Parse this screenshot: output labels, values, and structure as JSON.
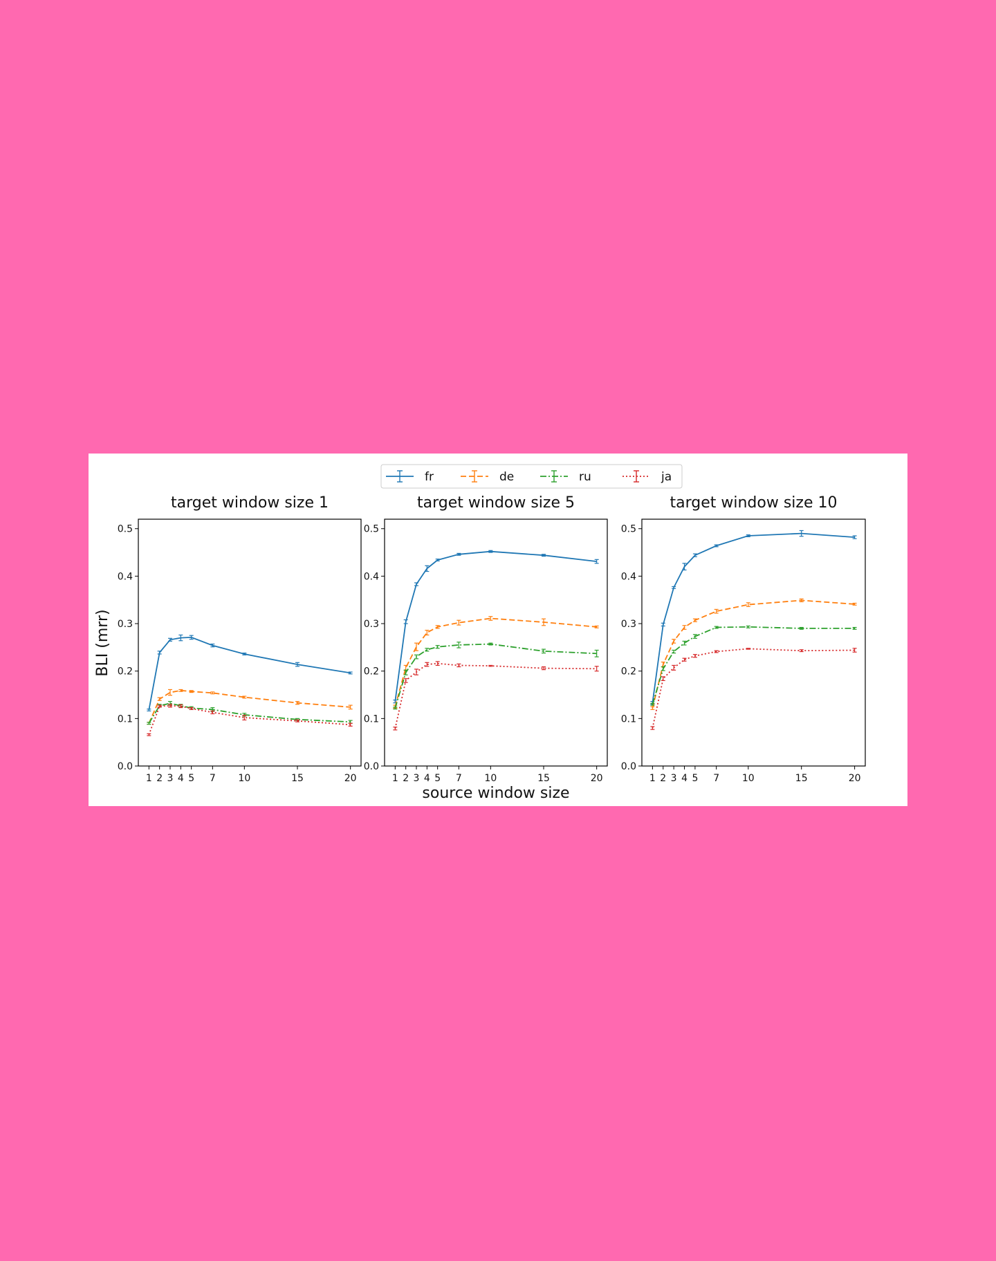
{
  "figure": {
    "ylabel": "BLI (mrr)",
    "xlabel": "source window size",
    "legend_position": "top-center"
  },
  "chart_data": [
    {
      "type": "line",
      "title": "target window size 1",
      "x": [
        1,
        2,
        3,
        4,
        5,
        7,
        10,
        15,
        20
      ],
      "x_ticks": [
        1,
        2,
        3,
        4,
        5,
        7,
        10,
        15,
        20
      ],
      "xlim": [
        0,
        21
      ],
      "ylim": [
        0,
        0.52
      ],
      "y_ticks": [
        "0.0",
        "0.1",
        "0.2",
        "0.3",
        "0.4",
        "0.5"
      ],
      "series": [
        {
          "name": "fr",
          "color": "#1f77b4",
          "dash": "solid",
          "values": [
            0.118,
            0.239,
            0.266,
            0.27,
            0.271,
            0.254,
            0.236,
            0.214,
            0.196
          ],
          "err": [
            0.002,
            0.003,
            0.003,
            0.006,
            0.004,
            0.003,
            0.002,
            0.004,
            0.002
          ]
        },
        {
          "name": "de",
          "color": "#ff7f0e",
          "dash": "dashed",
          "values": [
            0.09,
            0.141,
            0.155,
            0.159,
            0.157,
            0.154,
            0.145,
            0.133,
            0.124
          ],
          "err": [
            0.002,
            0.003,
            0.006,
            0.002,
            0.002,
            0.002,
            0.002,
            0.003,
            0.004
          ]
        },
        {
          "name": "ru",
          "color": "#2ca02c",
          "dash": "dashdot",
          "values": [
            0.09,
            0.127,
            0.132,
            0.127,
            0.122,
            0.119,
            0.108,
            0.098,
            0.093
          ],
          "err": [
            0.002,
            0.003,
            0.004,
            0.003,
            0.003,
            0.004,
            0.003,
            0.002,
            0.003
          ]
        },
        {
          "name": "ja",
          "color": "#d62728",
          "dash": "dotted",
          "values": [
            0.066,
            0.126,
            0.127,
            0.126,
            0.121,
            0.113,
            0.102,
            0.095,
            0.087
          ],
          "err": [
            0.002,
            0.002,
            0.003,
            0.003,
            0.002,
            0.003,
            0.005,
            0.002,
            0.003
          ]
        }
      ]
    },
    {
      "type": "line",
      "title": "target window size 5",
      "x": [
        1,
        2,
        3,
        4,
        5,
        7,
        10,
        15,
        20
      ],
      "x_ticks": [
        1,
        2,
        3,
        4,
        5,
        7,
        10,
        15,
        20
      ],
      "xlim": [
        0,
        21
      ],
      "ylim": [
        0,
        0.52
      ],
      "y_ticks": [
        "0.0",
        "0.1",
        "0.2",
        "0.3",
        "0.4",
        "0.5"
      ],
      "series": [
        {
          "name": "fr",
          "color": "#1f77b4",
          "dash": "solid",
          "values": [
            0.136,
            0.304,
            0.383,
            0.416,
            0.434,
            0.446,
            0.452,
            0.444,
            0.431
          ],
          "err": [
            0.003,
            0.004,
            0.003,
            0.006,
            0.002,
            0.002,
            0.002,
            0.002,
            0.004
          ]
        },
        {
          "name": "de",
          "color": "#ff7f0e",
          "dash": "dashed",
          "values": [
            0.125,
            0.207,
            0.251,
            0.281,
            0.293,
            0.302,
            0.311,
            0.303,
            0.293
          ],
          "err": [
            0.003,
            0.005,
            0.008,
            0.005,
            0.003,
            0.005,
            0.004,
            0.007,
            0.002
          ]
        },
        {
          "name": "ru",
          "color": "#2ca02c",
          "dash": "dashdot",
          "values": [
            0.122,
            0.197,
            0.23,
            0.245,
            0.251,
            0.255,
            0.257,
            0.242,
            0.237
          ],
          "err": [
            0.002,
            0.005,
            0.004,
            0.003,
            0.003,
            0.006,
            0.002,
            0.004,
            0.007
          ]
        },
        {
          "name": "ja",
          "color": "#d62728",
          "dash": "dotted",
          "values": [
            0.079,
            0.18,
            0.198,
            0.214,
            0.216,
            0.212,
            0.211,
            0.206,
            0.205
          ],
          "err": [
            0.003,
            0.004,
            0.006,
            0.004,
            0.004,
            0.003,
            0.001,
            0.003,
            0.005
          ]
        }
      ]
    },
    {
      "type": "line",
      "title": "target window size 10",
      "x": [
        1,
        2,
        3,
        4,
        5,
        7,
        10,
        15,
        20
      ],
      "x_ticks": [
        1,
        2,
        3,
        4,
        5,
        7,
        10,
        15,
        20
      ],
      "xlim": [
        0,
        21
      ],
      "ylim": [
        0,
        0.52
      ],
      "y_ticks": [
        "0.0",
        "0.1",
        "0.2",
        "0.3",
        "0.4",
        "0.5"
      ],
      "series": [
        {
          "name": "fr",
          "color": "#1f77b4",
          "dash": "solid",
          "values": [
            0.133,
            0.298,
            0.376,
            0.42,
            0.444,
            0.464,
            0.485,
            0.49,
            0.482
          ],
          "err": [
            0.003,
            0.003,
            0.002,
            0.007,
            0.003,
            0.002,
            0.002,
            0.006,
            0.003
          ]
        },
        {
          "name": "de",
          "color": "#ff7f0e",
          "dash": "dashed",
          "values": [
            0.122,
            0.214,
            0.263,
            0.292,
            0.307,
            0.326,
            0.34,
            0.349,
            0.341
          ],
          "err": [
            0.003,
            0.005,
            0.004,
            0.004,
            0.003,
            0.004,
            0.004,
            0.003,
            0.002
          ]
        },
        {
          "name": "ru",
          "color": "#2ca02c",
          "dash": "dashdot",
          "values": [
            0.13,
            0.205,
            0.241,
            0.259,
            0.273,
            0.292,
            0.293,
            0.29,
            0.29
          ],
          "err": [
            0.002,
            0.004,
            0.003,
            0.004,
            0.004,
            0.002,
            0.002,
            0.002,
            0.002
          ]
        },
        {
          "name": "ja",
          "color": "#d62728",
          "dash": "dotted",
          "values": [
            0.08,
            0.184,
            0.207,
            0.224,
            0.232,
            0.241,
            0.247,
            0.243,
            0.244
          ],
          "err": [
            0.003,
            0.004,
            0.005,
            0.003,
            0.003,
            0.002,
            0.001,
            0.002,
            0.004
          ]
        }
      ]
    }
  ]
}
